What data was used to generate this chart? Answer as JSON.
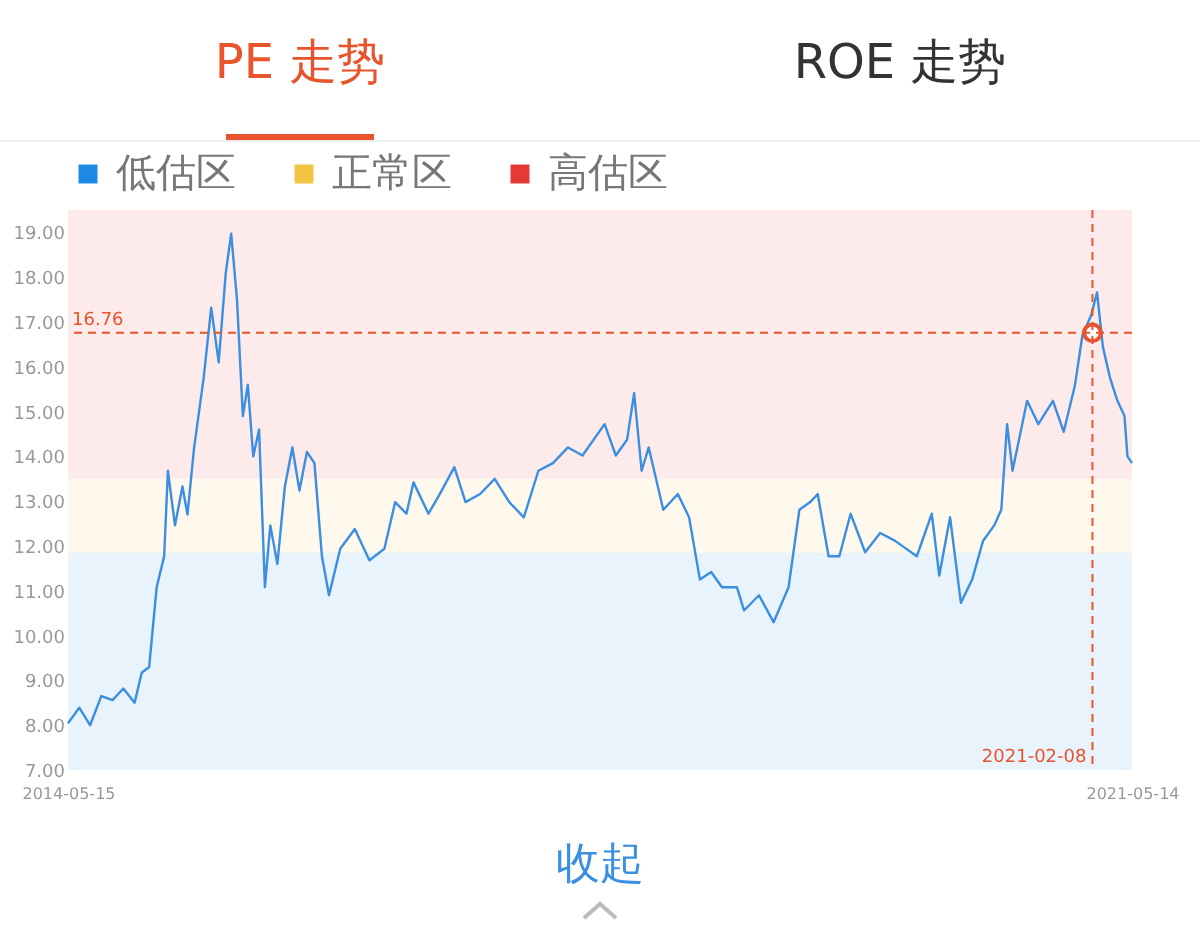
{
  "chart_data": {
    "type": "line",
    "title": "PE 走势",
    "annotations": [
      "ROE 走势",
      "收起"
    ],
    "x": [
      "2014-05-15",
      "2014-06-11",
      "2014-07-07",
      "2014-08-03",
      "2014-08-30",
      "2014-09-25",
      "2014-10-22",
      "2014-11-08",
      "2014-11-26",
      "2014-12-14",
      "2015-01-01",
      "2015-01-10",
      "2015-01-27",
      "2015-02-14",
      "2015-02-26",
      "2015-03-14",
      "2015-04-06",
      "2015-04-24",
      "2015-05-12",
      "2015-05-29",
      "2015-06-11",
      "2015-06-25",
      "2015-07-09",
      "2015-07-21",
      "2015-08-03",
      "2015-08-17",
      "2015-08-31",
      "2015-09-13",
      "2015-09-30",
      "2015-10-18",
      "2015-11-05",
      "2015-11-22",
      "2015-12-10",
      "2015-12-28",
      "2016-01-15",
      "2016-02-01",
      "2016-02-28",
      "2016-04-03",
      "2016-05-08",
      "2016-06-13",
      "2016-07-09",
      "2016-08-05",
      "2016-08-22",
      "2016-09-27",
      "2016-10-24",
      "2016-11-28",
      "2016-12-25",
      "2017-01-29",
      "2017-03-05",
      "2017-04-09",
      "2017-05-14",
      "2017-06-18",
      "2017-07-23",
      "2017-08-28",
      "2017-10-02",
      "2017-11-24",
      "2017-12-21",
      "2018-01-17",
      "2018-02-03",
      "2018-02-21",
      "2018-03-10",
      "2018-04-14",
      "2018-05-19",
      "2018-06-15",
      "2018-07-11",
      "2018-08-07",
      "2018-09-02",
      "2018-10-08",
      "2018-10-25",
      "2018-11-30",
      "2019-01-04",
      "2019-02-09",
      "2019-03-07",
      "2019-04-02",
      "2019-04-20",
      "2019-05-16",
      "2019-06-11",
      "2019-07-08",
      "2019-08-12",
      "2019-09-17",
      "2019-10-22",
      "2019-12-14",
      "2020-01-19",
      "2020-02-06",
      "2020-03-03",
      "2020-03-29",
      "2020-04-25",
      "2020-05-21",
      "2020-06-17",
      "2020-07-04",
      "2020-07-18",
      "2020-07-31",
      "2020-09-04",
      "2020-10-01",
      "2020-11-05",
      "2020-12-01",
      "2020-12-28",
      "2021-01-15",
      "2021-02-05",
      "2021-02-19",
      "2021-03-05",
      "2021-03-22",
      "2021-04-09",
      "2021-04-26",
      "2021-05-03",
      "2021-05-14"
    ],
    "series": [
      {
        "color": "#3b8ee0",
        "values": [
          8.04,
          8.39,
          8.0,
          8.65,
          8.56,
          8.82,
          8.5,
          9.17,
          9.3,
          11.08,
          11.77,
          13.68,
          12.46,
          13.33,
          12.7,
          14.2,
          15.76,
          17.32,
          16.1,
          18.1,
          18.97,
          17.5,
          14.9,
          15.6,
          14.0,
          14.6,
          11.08,
          12.46,
          11.6,
          13.33,
          14.2,
          13.24,
          14.1,
          13.85,
          11.77,
          10.9,
          11.94,
          12.38,
          11.68,
          11.94,
          12.98,
          12.72,
          13.42,
          12.72,
          13.16,
          13.76,
          12.98,
          13.16,
          13.5,
          12.98,
          12.64,
          13.68,
          13.85,
          14.2,
          14.02,
          14.72,
          14.02,
          14.37,
          15.41,
          13.68,
          14.2,
          12.81,
          13.16,
          12.64,
          11.25,
          11.42,
          11.08,
          11.08,
          10.56,
          10.9,
          10.3,
          11.08,
          12.81,
          12.98,
          13.16,
          11.77,
          11.77,
          12.72,
          11.86,
          12.29,
          12.12,
          11.77,
          12.72,
          11.34,
          12.64,
          10.73,
          11.25,
          12.11,
          12.46,
          12.81,
          14.72,
          13.68,
          15.24,
          14.72,
          15.24,
          14.55,
          15.59,
          16.71,
          17.15,
          17.66,
          16.45,
          15.76,
          15.24,
          14.9,
          14.0,
          13.85
        ]
      },
      {
        "type": "scatter",
        "color": "#e8542b",
        "marker": "circle",
        "x": [
          "2021-02-08"
        ],
        "values": [
          16.76
        ]
      }
    ],
    "xlim": [
      "2014-05-15",
      "2021-05-14"
    ],
    "xticks": [
      "2014-05-15",
      "2021-05-14"
    ],
    "ylim": [
      7,
      19.5
    ],
    "yticks": [
      {
        "value": 7,
        "label": "7.00"
      },
      {
        "value": 8,
        "label": "8.00"
      },
      {
        "value": 9,
        "label": "9.00"
      },
      {
        "value": 10,
        "label": "10.00"
      },
      {
        "value": 11,
        "label": "11.00"
      },
      {
        "value": 12,
        "label": "12.00"
      },
      {
        "value": 13,
        "label": "13.00"
      },
      {
        "value": 14,
        "label": "14.00"
      },
      {
        "value": 15,
        "label": "15.00"
      },
      {
        "value": 16,
        "label": "16.00"
      },
      {
        "value": 17,
        "label": "17.00"
      },
      {
        "value": 18,
        "label": "18.00"
      },
      {
        "value": 19,
        "label": "19.00"
      }
    ],
    "bands": [
      {
        "axis": "y",
        "from": 7,
        "to": 11.85,
        "label": "低估区",
        "color": "#1e88e5"
      },
      {
        "axis": "y",
        "from": 11.85,
        "to": 13.5,
        "label": "正常区",
        "color": "#f5c342"
      },
      {
        "axis": "y",
        "from": 13.5,
        "to": 19.5,
        "label": "高估区",
        "color": "#e53935"
      }
    ],
    "ref_lines": [
      {
        "axis": "y",
        "value": 16.76,
        "label": "16.76",
        "color": "#e8542b",
        "line_style": "dashed"
      },
      {
        "axis": "x",
        "value": "2021-02-08",
        "label": "2021-02-08",
        "color": "#e8542b",
        "line_style": "dashed"
      }
    ],
    "legend": "top left",
    "grid": false
  }
}
